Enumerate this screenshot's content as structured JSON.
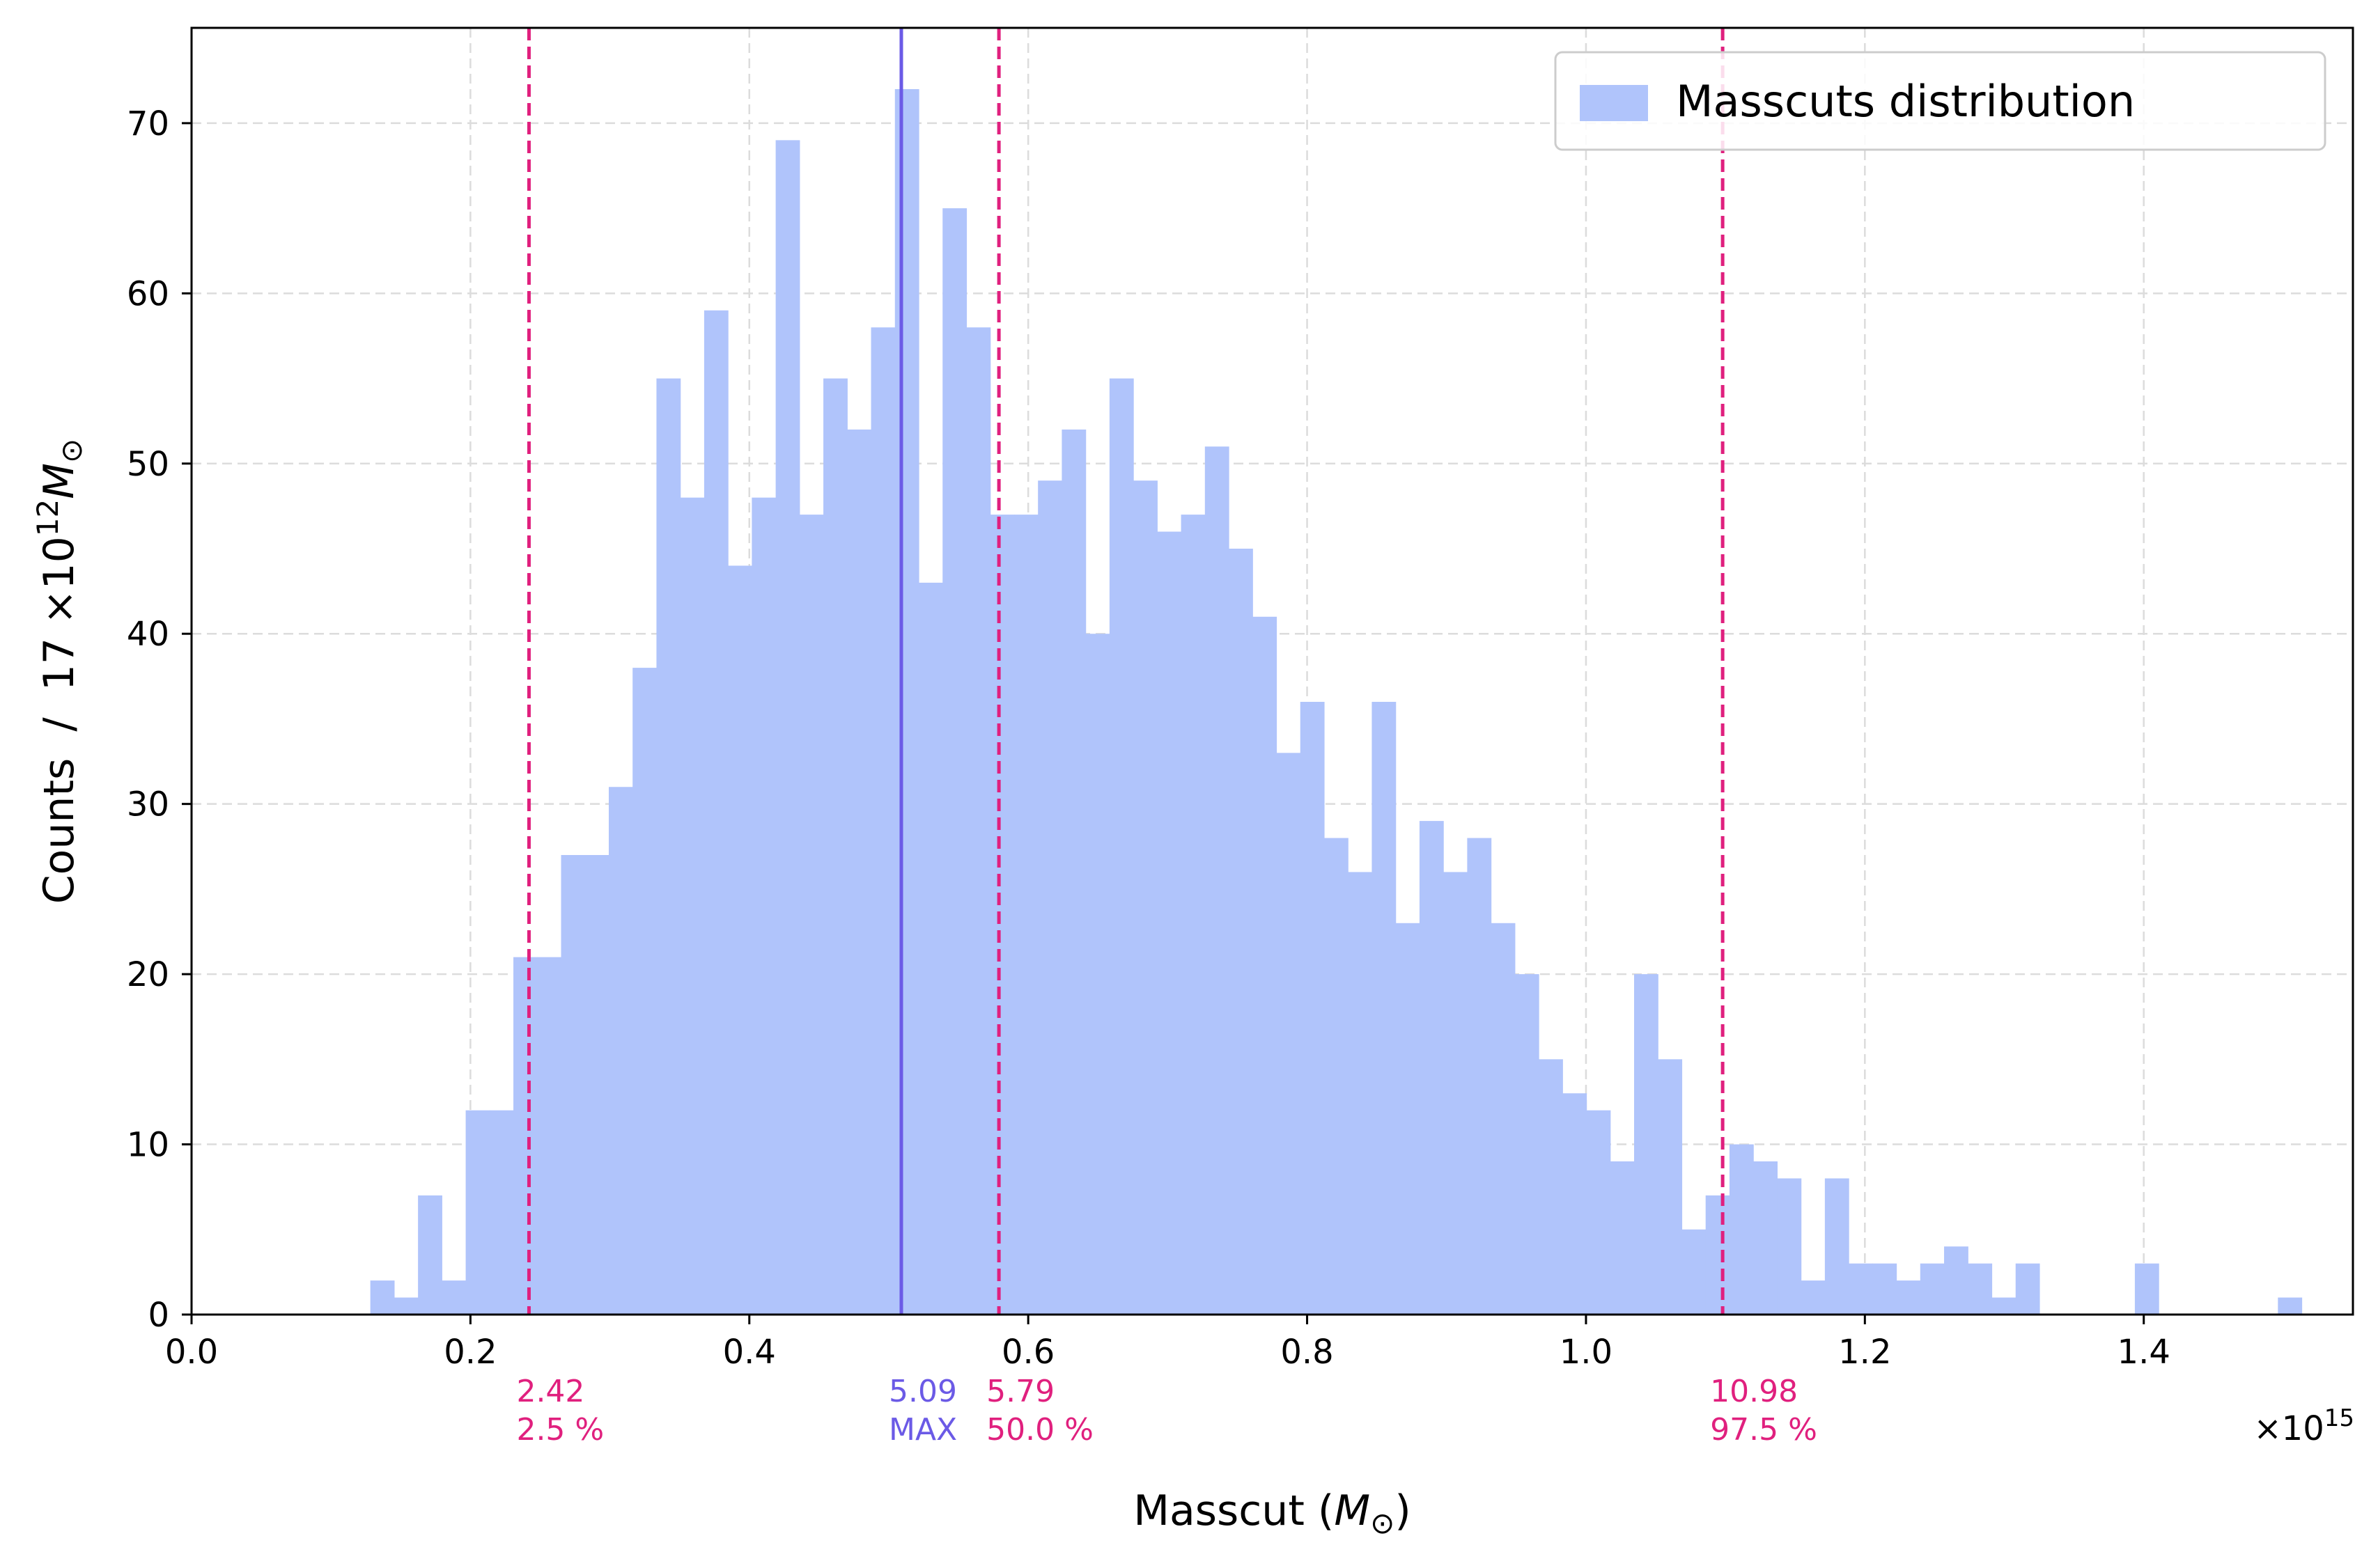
{
  "chart_data": {
    "type": "bar",
    "xlabel": "Masscut (M⊙)",
    "xlabel_parts": {
      "base": "Masscut (",
      "italic": "M",
      "sub": "⊙",
      "close": ")"
    },
    "ylabel": "Counts  /  17 ×10¹² M⊙",
    "ylabel_parts": {
      "base": "Counts  /  17 ×10",
      "sup": "12",
      "italic": "M",
      "sub": "⊙"
    },
    "x_offset_text": {
      "base": "×10",
      "sup": "15"
    },
    "xlim": [
      0,
      1.55
    ],
    "ylim": [
      0,
      75.6
    ],
    "x_ticks": [
      0.0,
      0.2,
      0.4,
      0.6,
      0.8,
      1.0,
      1.2,
      1.4
    ],
    "x_tick_labels": [
      "0.0",
      "0.2",
      "0.4",
      "0.6",
      "0.8",
      "1.0",
      "1.2",
      "1.4"
    ],
    "y_ticks": [
      0,
      10,
      20,
      30,
      40,
      50,
      60,
      70
    ],
    "y_tick_labels": [
      "0",
      "10",
      "20",
      "30",
      "40",
      "50",
      "60",
      "70"
    ],
    "grid": true,
    "legend": {
      "position": "top-right",
      "entries": [
        {
          "label": "Masscuts distribution",
          "color": "#b0c4fb"
        }
      ]
    },
    "series": [
      {
        "name": "Masscuts distribution",
        "color": "#b0c4fb",
        "bin_start": 0.1282,
        "bin_width": 0.0171,
        "counts": [
          2,
          1,
          7,
          2,
          12,
          12,
          21,
          21,
          27,
          27,
          31,
          38,
          55,
          48,
          59,
          44,
          48,
          69,
          47,
          55,
          52,
          58,
          72,
          43,
          65,
          58,
          47,
          47,
          49,
          52,
          40,
          55,
          49,
          46,
          47,
          51,
          45,
          41,
          33,
          36,
          28,
          26,
          36,
          23,
          29,
          26,
          28,
          23,
          20,
          15,
          13,
          12,
          9,
          20,
          15,
          5,
          7,
          10,
          9,
          8,
          2,
          8,
          3,
          3,
          2,
          3,
          4,
          3,
          1,
          3,
          0,
          0,
          0,
          0,
          3,
          0,
          0,
          0,
          0,
          0,
          1
        ]
      }
    ],
    "vlines": [
      {
        "x": 0.242,
        "style": "dashed",
        "color": "#e0207e",
        "label_value": "2.42",
        "label_pct": "2.5 %"
      },
      {
        "x": 0.509,
        "style": "solid",
        "color": "#6b5ae6",
        "label_value": "5.09",
        "label_pct": "MAX"
      },
      {
        "x": 0.579,
        "style": "dashed",
        "color": "#e0207e",
        "label_value": "5.79",
        "label_pct": "50.0 %"
      },
      {
        "x": 1.098,
        "style": "dashed",
        "color": "#e0207e",
        "label_value": "10.98",
        "label_pct": "97.5 %"
      }
    ]
  }
}
